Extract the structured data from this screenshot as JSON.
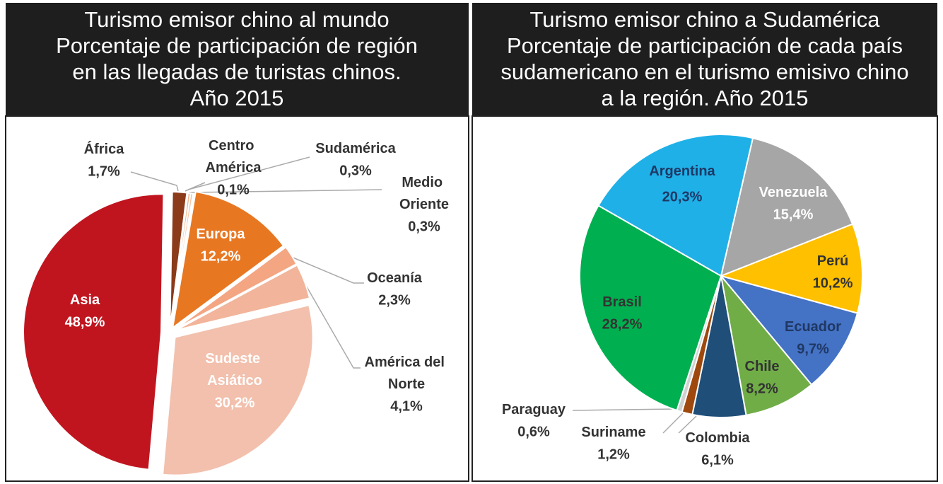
{
  "chart_data": [
    {
      "type": "pie",
      "title": [
        "Turismo emisor chino al mundo",
        "Porcentaje de participación de región",
        "en las llegadas de turistas chinos.",
        "Año 2015"
      ],
      "categories": [
        "África",
        "Centro América",
        "Sudamérica",
        "Medio Oriente",
        "Europa",
        "Oceanía",
        "América del Norte",
        "Sudeste Asiático",
        "Asia"
      ],
      "values": [
        1.7,
        0.1,
        0.3,
        0.3,
        12.2,
        2.3,
        4.1,
        30.2,
        48.9
      ],
      "value_labels": [
        "1,7%",
        "0,1%",
        "0,3%",
        "0,3%",
        "12,2%",
        "2,3%",
        "4,1%",
        "30,2%",
        "48,9%"
      ],
      "colors": [
        "#8b3a1a",
        "#e9a070",
        "#f0b890",
        "#f3c6a8",
        "#e87722",
        "#f4a582",
        "#f2b49a",
        "#f2c0ad",
        "#c0151f"
      ]
    },
    {
      "type": "pie",
      "title": [
        "Turismo emisor chino a Sudamérica",
        "Porcentaje de participación de cada país",
        "sudamericano en el turismo emisivo chino",
        "a la región. Año 2015"
      ],
      "categories": [
        "Venezuela",
        "Perú",
        "Ecuador",
        "Chile",
        "Colombia",
        "Suriname",
        "Paraguay",
        "Brasil",
        "Argentina"
      ],
      "values": [
        15.4,
        10.2,
        9.7,
        8.2,
        6.1,
        1.2,
        0.6,
        28.2,
        20.3
      ],
      "value_labels": [
        "15,4%",
        "10,2%",
        "9,7%",
        "8,2%",
        "6,1%",
        "1,2%",
        "0,6%",
        "28,2%",
        "20,3%"
      ],
      "colors": [
        "#a6a6a6",
        "#ffc000",
        "#4472c4",
        "#70ad47",
        "#1f4e79",
        "#9e480e",
        "#d0d0d0",
        "#00b050",
        "#1fb0e8"
      ]
    }
  ]
}
